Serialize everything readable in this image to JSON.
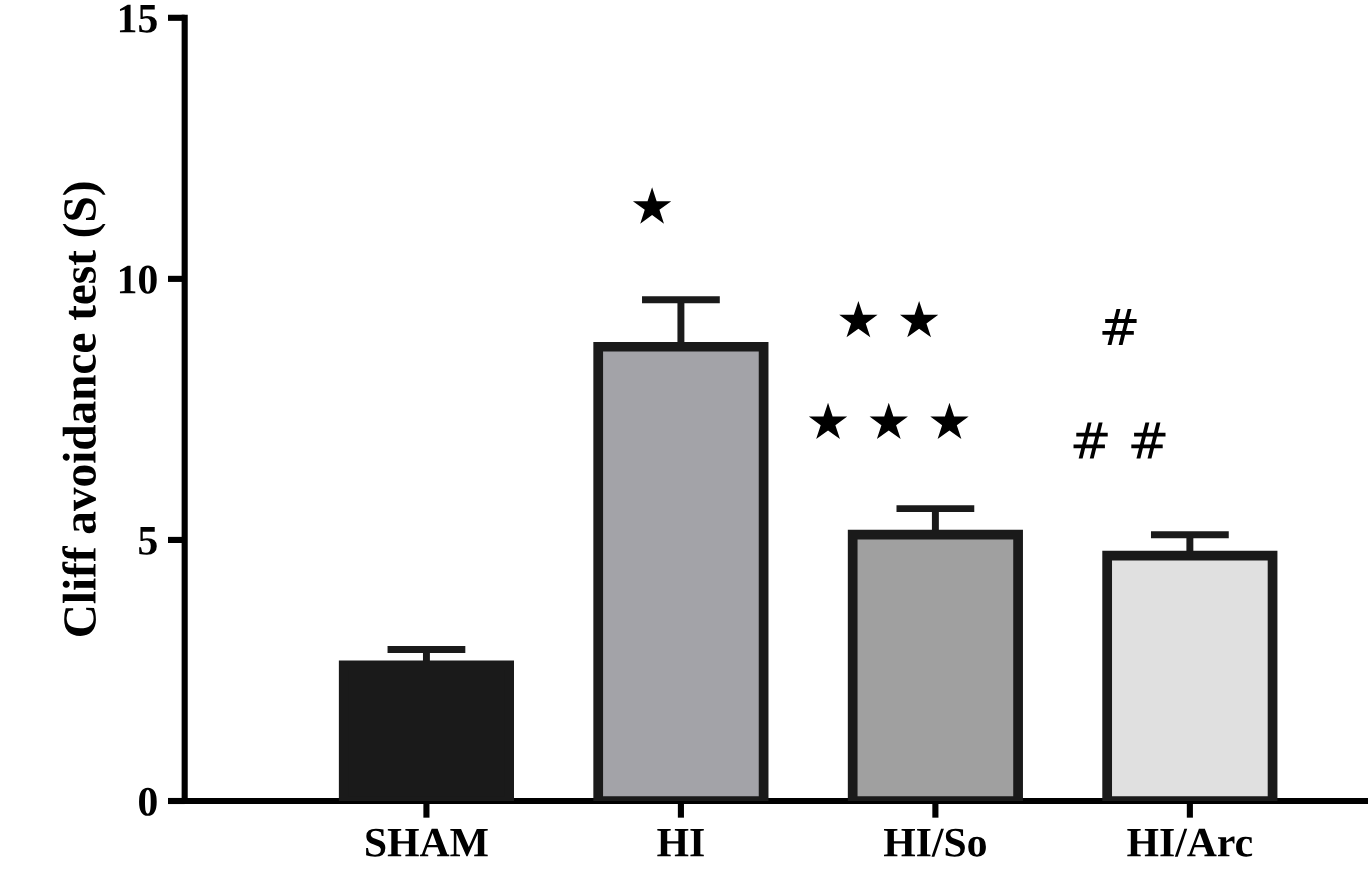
{
  "chart_data": {
    "type": "bar",
    "ylabel": "Cliff avoidance test (S)",
    "categories": [
      "SHAM",
      "HI",
      "HI/So",
      "HI/Arc"
    ],
    "values": [
      2.6,
      8.7,
      5.1,
      4.7
    ],
    "errors": [
      0.3,
      0.9,
      0.5,
      0.4
    ],
    "colors": [
      "#1a1a1a",
      "#a3a3a8",
      "#a0a0a0",
      "#e0e0e0"
    ],
    "ylim": [
      0,
      15
    ],
    "yticks": [
      0,
      5,
      10,
      15
    ],
    "grid": false,
    "legend": false,
    "annotations": [
      "★",
      "★ ★",
      "★ ★ ★",
      "#",
      "# #"
    ]
  }
}
